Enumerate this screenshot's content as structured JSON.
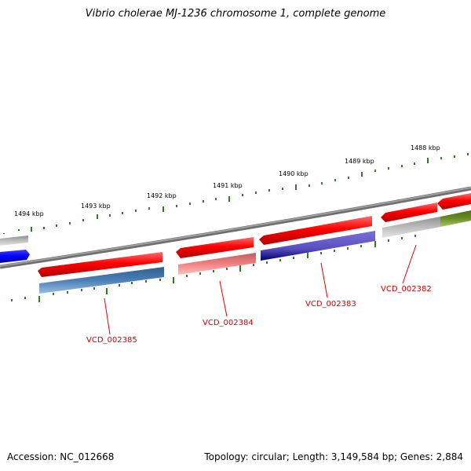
{
  "title": "Vibrio cholerae MJ-1236 chromosome 1, complete genome",
  "footer": {
    "accession": "Accession: NC_012668",
    "summary": "Topology: circular; Length: 3,149,584 bp; Genes: 2,884"
  },
  "kbp_labels": [
    "1488 kbp",
    "1489 kbp",
    "1490 kbp",
    "1491 kbp",
    "1492 kbp",
    "1493 kbp",
    "1494 kbp"
  ],
  "locus_tags": [
    "VCD_002382",
    "VCD_002383",
    "VCD_002384",
    "VCD_002385"
  ],
  "colors": {
    "forward_gene": "#ee0000",
    "tick_green": "#2e7d1e",
    "backbone": "#808080",
    "label_red": "#d00000",
    "blue_gene": "#0000ee",
    "steel_blue": "#4a7fb5",
    "light_red": "#f08080",
    "navy": "#1a1a8c",
    "grey": "#b0b0b0",
    "olive": "#6b8e23"
  }
}
